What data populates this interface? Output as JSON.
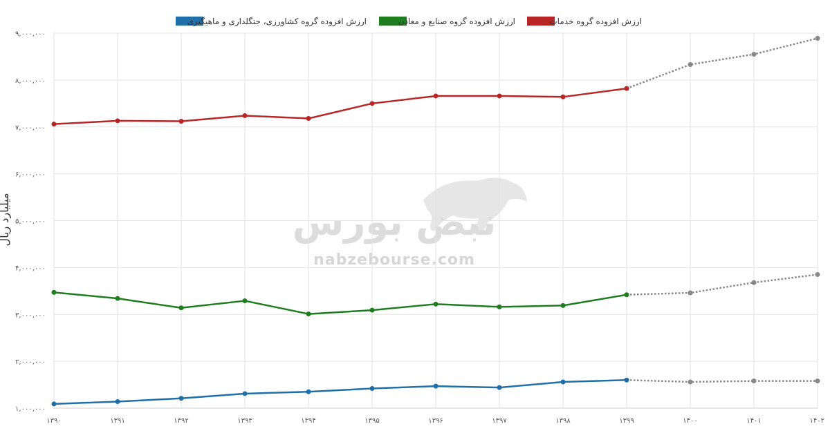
{
  "chart_data": {
    "type": "line",
    "ylabel": "میلیارد ریال",
    "ylim": [
      1000000,
      9000000
    ],
    "y_ticks": [
      "۹,۰۰۰,۰۰۰",
      "۸,۰۰۰,۰۰۰",
      "۷,۰۰۰,۰۰۰",
      "۶,۰۰۰,۰۰۰",
      "۵,۰۰۰,۰۰۰",
      "۴,۰۰۰,۰۰۰",
      "۳,۰۰۰,۰۰۰",
      "۲,۰۰۰,۰۰۰",
      "۱,۰۰۰,۰۰۰"
    ],
    "y_tick_values": [
      9000000,
      8000000,
      7000000,
      6000000,
      5000000,
      4000000,
      3000000,
      2000000,
      1000000
    ],
    "categories": [
      "۱۳۹۰",
      "۱۳۹۱",
      "۱۳۹۲",
      "۱۳۹۳",
      "۱۳۹۴",
      "۱۳۹۵",
      "۱۳۹۶",
      "۱۳۹۷",
      "۱۳۹۸",
      "۱۳۹۹",
      "۱۴۰۰",
      "۱۴۰۱",
      "۱۴۰۲"
    ],
    "legend_position": "top-center",
    "grid": true,
    "series": [
      {
        "name": "ارزش افزوده گروه کشاورزی، جنگلداری و ماهیگیری",
        "color": "#1f6fa8",
        "values": [
          1090000,
          1140000,
          1210000,
          1310000,
          1350000,
          1420000,
          1470000,
          1440000,
          1560000,
          1600000,
          1560000,
          1580000,
          1580000
        ],
        "forecast_from_index": 9
      },
      {
        "name": "ارزش افزوده گروه صنایع و معادن",
        "color": "#1e7d1e",
        "values": [
          3470000,
          3340000,
          3140000,
          3290000,
          3010000,
          3090000,
          3220000,
          3160000,
          3190000,
          3420000,
          3460000,
          3680000,
          3850000
        ],
        "forecast_from_index": 9
      },
      {
        "name": "ارزش افزوده گروه خدمات",
        "color": "#b82525",
        "values": [
          7060000,
          7130000,
          7120000,
          7240000,
          7180000,
          7500000,
          7660000,
          7660000,
          7640000,
          7820000,
          8330000,
          8550000,
          8890000
        ],
        "forecast_from_index": 9
      }
    ],
    "forecast_color": "#888888"
  },
  "watermark": {
    "logo": "نبض بورس",
    "url": "nabzebourse.com"
  }
}
